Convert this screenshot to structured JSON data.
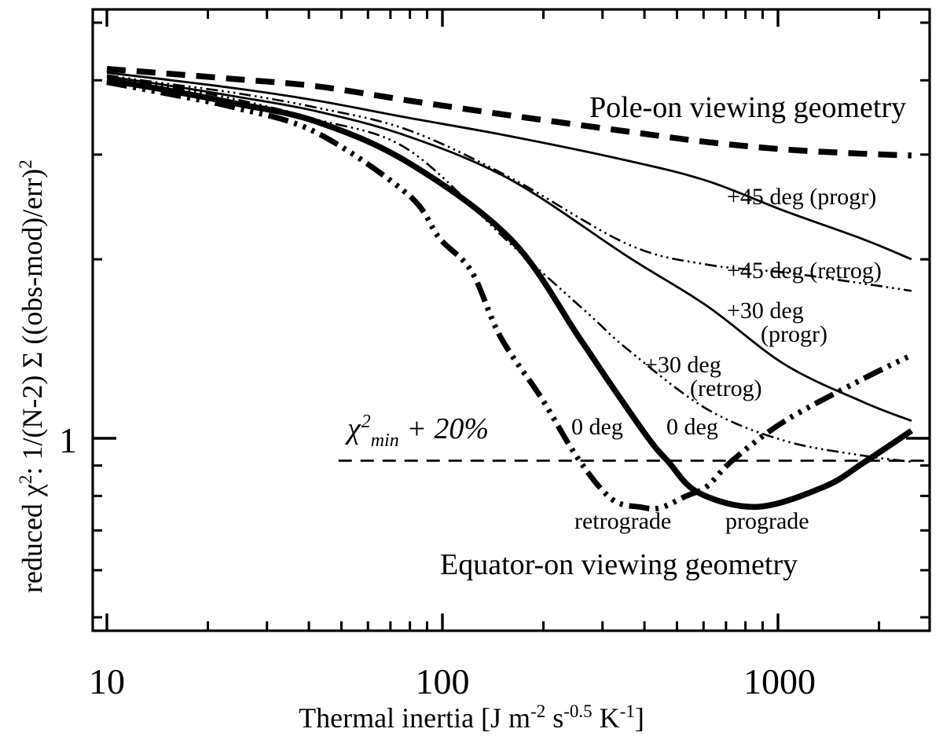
{
  "figure": {
    "background": "#ffffff",
    "ink": "#000000"
  },
  "labels": {
    "pole_on": "Pole-on viewing geometry",
    "equator_on": "Equator-on viewing geometry",
    "p45_progr": "+45 deg (progr)",
    "p45_retrog": "+45 deg (retrog)",
    "p30_l1": "+30 deg",
    "p30_progr_l2": "(progr)",
    "p30_retrog_l2": "(retrog)",
    "zero_deg_left": "0 deg",
    "zero_deg_right": "0 deg",
    "retrograde": "retrograde",
    "prograde": "prograde",
    "chi_min": {
      "chi": "χ",
      "sup": "2",
      "sub": "min",
      "rest": " + 20%"
    }
  },
  "axes": {
    "x": {
      "scale": "log",
      "range": [
        9.07,
        2832
      ],
      "ticks_major": [
        10,
        100,
        1000
      ],
      "ticks_minor": [
        20,
        30,
        40,
        50,
        60,
        70,
        80,
        90,
        200,
        300,
        400,
        500,
        600,
        700,
        800,
        900,
        2000
      ],
      "tick_labels": [
        "10",
        "100",
        "1000"
      ],
      "title": {
        "p1": "Thermal inertia [J m",
        "s1": "-2",
        "p2": " s",
        "s2": "-0.5",
        "p3": " K",
        "s3": "-1",
        "p4": "]"
      }
    },
    "y": {
      "scale": "log",
      "range": [
        0.475,
        5.27
      ],
      "ticks_major": [
        1
      ],
      "ticks_minor": [
        0.5,
        0.6,
        0.7,
        0.8,
        0.9,
        2,
        3,
        4,
        5
      ],
      "tick_labels": [
        "1"
      ],
      "title": {
        "p1": "reduced χ",
        "s1": "2",
        "p2": ": 1/(N-2) Σ ((obs-mod)/err)",
        "s2": "2"
      }
    }
  },
  "chart_data": {
    "type": "line",
    "title": "",
    "xlabel": "Thermal inertia [J m^-2 s^-0.5 K^-1]",
    "ylabel": "reduced chi^2 : 1/(N-2) Sum ((obs-mod)/err)^2",
    "xscale": "log",
    "yscale": "log",
    "xlim": [
      9.07,
      2832
    ],
    "ylim": [
      0.475,
      5.27
    ],
    "grid": false,
    "legend": "inline-annotations",
    "series": [
      {
        "name": "Pole-on viewing geometry",
        "style": "thick_dashed",
        "points": [
          [
            10,
            4.18
          ],
          [
            14,
            4.12
          ],
          [
            24,
            4.02
          ],
          [
            42,
            3.91
          ],
          [
            79,
            3.7
          ],
          [
            160,
            3.49
          ],
          [
            357,
            3.28
          ],
          [
            614,
            3.15
          ],
          [
            1050,
            3.06
          ],
          [
            1800,
            3.01
          ],
          [
            2500,
            2.99
          ]
        ]
      },
      {
        "name": "+45 deg (progr)",
        "style": "thin_solid",
        "points": [
          [
            10,
            4.12
          ],
          [
            14,
            4.03
          ],
          [
            24,
            3.88
          ],
          [
            42,
            3.7
          ],
          [
            79,
            3.46
          ],
          [
            160,
            3.22
          ],
          [
            357,
            2.93
          ],
          [
            614,
            2.71
          ],
          [
            1050,
            2.41
          ],
          [
            1800,
            2.16
          ],
          [
            2500,
            2.0
          ]
        ]
      },
      {
        "name": "+45 deg (retrog)",
        "style": "thin_dashdotdot",
        "points": [
          [
            10,
            4.08
          ],
          [
            14,
            3.97
          ],
          [
            24,
            3.81
          ],
          [
            42,
            3.6
          ],
          [
            79,
            3.3
          ],
          [
            160,
            2.74
          ],
          [
            357,
            2.12
          ],
          [
            614,
            1.96
          ],
          [
            1050,
            1.9
          ],
          [
            1800,
            1.82
          ],
          [
            2500,
            1.77
          ]
        ]
      },
      {
        "name": "+30 deg (progr)",
        "style": "thin_solid",
        "points": [
          [
            10,
            4.06
          ],
          [
            14,
            3.95
          ],
          [
            24,
            3.76
          ],
          [
            42,
            3.55
          ],
          [
            79,
            3.22
          ],
          [
            160,
            2.72
          ],
          [
            357,
            2.02
          ],
          [
            614,
            1.67
          ],
          [
            1050,
            1.33
          ],
          [
            1800,
            1.15
          ],
          [
            2500,
            1.07
          ]
        ]
      },
      {
        "name": "+30 deg (retrog)",
        "style": "thin_dashdotdot",
        "points": [
          [
            10,
            4.05
          ],
          [
            14,
            3.93
          ],
          [
            24,
            3.72
          ],
          [
            42,
            3.44
          ],
          [
            79,
            3.06
          ],
          [
            160,
            2.12
          ],
          [
            272,
            1.62
          ],
          [
            357,
            1.41
          ],
          [
            614,
            1.12
          ],
          [
            1050,
            0.99
          ],
          [
            1800,
            0.935
          ],
          [
            2500,
            0.913
          ]
        ]
      },
      {
        "name": "0 deg prograde",
        "style": "thick_solid",
        "points": [
          [
            10,
            4.0
          ],
          [
            14,
            3.88
          ],
          [
            24,
            3.66
          ],
          [
            42,
            3.41
          ],
          [
            79,
            2.91
          ],
          [
            160,
            2.16
          ],
          [
            255,
            1.48
          ],
          [
            315,
            1.24
          ],
          [
            411,
            1.0
          ],
          [
            470,
            0.915
          ],
          [
            580,
            0.81
          ],
          [
            870,
            0.767
          ],
          [
            1380,
            0.83
          ],
          [
            1800,
            0.91
          ],
          [
            2500,
            1.03
          ]
        ]
      },
      {
        "name": "0 deg retrograde",
        "style": "thick_dashdotdot",
        "points": [
          [
            10,
            3.97
          ],
          [
            14,
            3.83
          ],
          [
            24,
            3.6
          ],
          [
            42,
            3.27
          ],
          [
            79,
            2.57
          ],
          [
            98,
            2.17
          ],
          [
            122,
            1.91
          ],
          [
            149,
            1.48
          ],
          [
            197,
            1.17
          ],
          [
            255,
            0.92
          ],
          [
            320,
            0.79
          ],
          [
            390,
            0.766
          ],
          [
            446,
            0.764
          ],
          [
            533,
            0.8
          ],
          [
            614,
            0.83
          ],
          [
            735,
            0.92
          ],
          [
            1050,
            1.07
          ],
          [
            1800,
            1.26
          ],
          [
            2500,
            1.38
          ]
        ]
      }
    ],
    "hline": {
      "label": "chi^2_min + 20%",
      "value": 0.917,
      "x_start": 49,
      "x_end": 2832
    }
  }
}
